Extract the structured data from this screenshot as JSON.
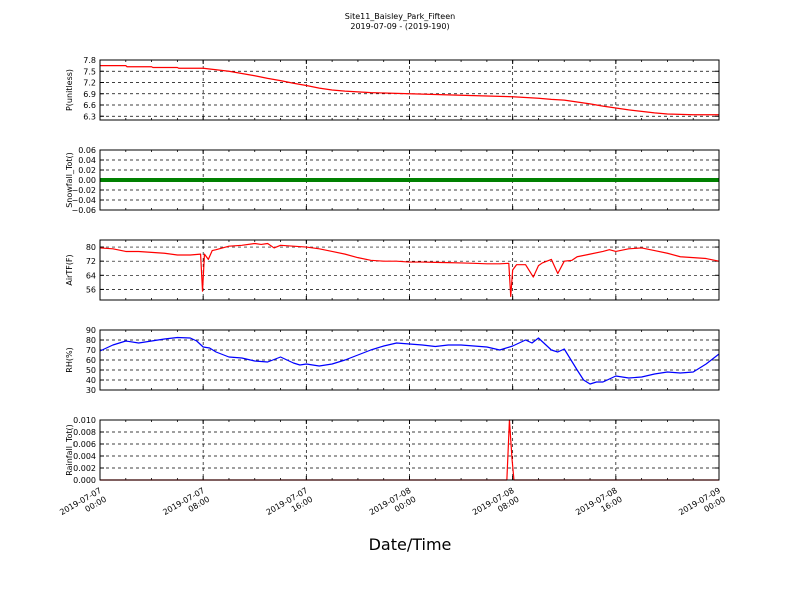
{
  "title": "Site11_Baisley_Park_Fifteen",
  "subtitle": "2019-07-09 - (2019-190)",
  "xlabel": "Date/Time",
  "chart_data": [
    {
      "type": "line",
      "ylabel": "P(unitless)",
      "ylim": [
        6.2,
        7.8
      ],
      "yticks": [
        "7.8",
        "7.5",
        "7.2",
        "6.9",
        "6.6",
        "6.3"
      ],
      "ytick_values": [
        7.8,
        7.5,
        7.2,
        6.9,
        6.6,
        6.3
      ],
      "xlim": [
        0,
        48
      ],
      "grid": true,
      "color": "#ff0000",
      "x": [
        0,
        2,
        2.1,
        4,
        4.1,
        6,
        6.1,
        8,
        9,
        10,
        11,
        12,
        13,
        14,
        15,
        16,
        17,
        18,
        19,
        20,
        21,
        22,
        23,
        24,
        25,
        26,
        27,
        28,
        29,
        30,
        31,
        32,
        33,
        34,
        35,
        36,
        37,
        38,
        39,
        40,
        41,
        42,
        43,
        44,
        45,
        46,
        47,
        48
      ],
      "y": [
        7.65,
        7.65,
        7.62,
        7.62,
        7.6,
        7.6,
        7.58,
        7.58,
        7.54,
        7.5,
        7.44,
        7.38,
        7.31,
        7.25,
        7.18,
        7.12,
        7.05,
        7.0,
        6.97,
        6.95,
        6.93,
        6.92,
        6.91,
        6.9,
        6.89,
        6.88,
        6.87,
        6.86,
        6.85,
        6.84,
        6.83,
        6.82,
        6.8,
        6.78,
        6.75,
        6.73,
        6.68,
        6.63,
        6.57,
        6.52,
        6.47,
        6.43,
        6.39,
        6.36,
        6.35,
        6.34,
        6.34,
        6.34
      ]
    },
    {
      "type": "line",
      "ylabel": "Snowfall_Tot()",
      "ylim": [
        -0.06,
        0.06
      ],
      "yticks": [
        "0.06",
        "0.04",
        "0.02",
        "0.00",
        "−0.02",
        "−0.04",
        "−0.06"
      ],
      "ytick_values": [
        0.06,
        0.04,
        0.02,
        0.0,
        -0.02,
        -0.04,
        -0.06
      ],
      "xlim": [
        0,
        48
      ],
      "grid": true,
      "color": "#008000",
      "x": [
        0,
        48
      ],
      "y": [
        0,
        0
      ]
    },
    {
      "type": "line",
      "ylabel": "AirTF(F)",
      "ylim": [
        50,
        84
      ],
      "yticks": [
        "80",
        "72",
        "64",
        "56"
      ],
      "ytick_values": [
        80,
        72,
        64,
        56
      ],
      "xlim": [
        0,
        48
      ],
      "grid": true,
      "color": "#ff0000",
      "x": [
        0,
        1,
        2,
        3,
        4,
        5,
        6,
        7,
        7.8,
        7.95,
        8.1,
        8.4,
        8.7,
        9,
        10,
        11,
        12,
        12.5,
        13,
        13.5,
        14,
        15,
        16,
        17,
        18,
        19,
        20,
        21,
        22,
        23,
        24,
        25,
        26,
        27,
        28,
        29,
        30,
        31,
        31.7,
        31.85,
        32,
        32.3,
        33,
        33.6,
        34,
        34.3,
        35,
        35.5,
        36,
        36.6,
        37,
        38,
        39,
        39.5,
        40,
        41,
        42,
        43,
        44,
        45,
        46,
        47,
        48
      ],
      "y": [
        79.5,
        79,
        77.5,
        77.5,
        77,
        76.5,
        75.5,
        75.5,
        76,
        55,
        76,
        73,
        78,
        78.5,
        80.5,
        81,
        82,
        81.5,
        82,
        79.5,
        81,
        80.5,
        80,
        79,
        77.5,
        76,
        74,
        72.5,
        72,
        72,
        71.5,
        71.5,
        71.3,
        71.2,
        71,
        70.8,
        70.5,
        70.5,
        70.8,
        52,
        67,
        70,
        70,
        63,
        69.5,
        71,
        73,
        65,
        72,
        72.5,
        74.5,
        76,
        77.5,
        78.5,
        77.5,
        79,
        79.5,
        78,
        76.5,
        74.5,
        74,
        73.5,
        72
      ]
    },
    {
      "type": "line",
      "ylabel": "RH(%)",
      "ylim": [
        30,
        90
      ],
      "yticks": [
        "90",
        "80",
        "70",
        "60",
        "50",
        "40",
        "30"
      ],
      "ytick_values": [
        90,
        80,
        70,
        60,
        50,
        40,
        30
      ],
      "xlim": [
        0,
        48
      ],
      "grid": true,
      "color": "#0000ff",
      "x": [
        0,
        1,
        2,
        3,
        4,
        5,
        6,
        7,
        7.5,
        8,
        8.5,
        9,
        10,
        11,
        12,
        13,
        14,
        15,
        15.5,
        16,
        17,
        18,
        19,
        20,
        21,
        22,
        23,
        24,
        25,
        26,
        27,
        28,
        29,
        30,
        31,
        32,
        33,
        33.5,
        34,
        35,
        35.5,
        36,
        37,
        37.5,
        38,
        38.5,
        39,
        40,
        41,
        42,
        43,
        44,
        45,
        46,
        47,
        48
      ],
      "y": [
        69,
        75,
        79,
        77,
        79,
        81,
        82.5,
        82,
        79,
        73,
        72,
        68,
        63,
        62,
        59,
        58,
        63,
        57,
        55,
        56,
        54,
        56,
        60,
        65,
        70,
        74,
        77,
        76,
        75,
        73.5,
        75,
        75,
        74,
        73,
        70,
        74,
        80,
        77,
        82,
        70,
        68,
        71,
        50,
        40,
        36,
        38,
        38,
        44,
        42,
        43,
        46,
        48,
        47,
        48,
        56,
        66
      ]
    },
    {
      "type": "line",
      "ylabel": "Rainfall_Tot()",
      "ylim": [
        0,
        0.01
      ],
      "yticks": [
        "0.010",
        "0.008",
        "0.006",
        "0.004",
        "0.002",
        "0.000"
      ],
      "ytick_values": [
        0.01,
        0.008,
        0.006,
        0.004,
        0.002,
        0.0
      ],
      "xlim": [
        0,
        48
      ],
      "grid": true,
      "color": "#ff0000",
      "x": [
        0,
        31.55,
        31.75,
        31.95,
        32.1,
        48
      ],
      "y": [
        0,
        0,
        0.01,
        0.0035,
        0,
        0
      ]
    }
  ],
  "xticks": [
    {
      "line1": "2019-07-07",
      "line2": "00:00",
      "x": 0
    },
    {
      "line1": "2019-07-07",
      "line2": "08:00",
      "x": 8
    },
    {
      "line1": "2019-07-07",
      "line2": "16:00",
      "x": 16
    },
    {
      "line1": "2019-07-08",
      "line2": "00:00",
      "x": 24
    },
    {
      "line1": "2019-07-08",
      "line2": "08:00",
      "x": 32
    },
    {
      "line1": "2019-07-08",
      "line2": "16:00",
      "x": 40
    },
    {
      "line1": "2019-07-09",
      "line2": "00:00",
      "x": 48
    }
  ]
}
